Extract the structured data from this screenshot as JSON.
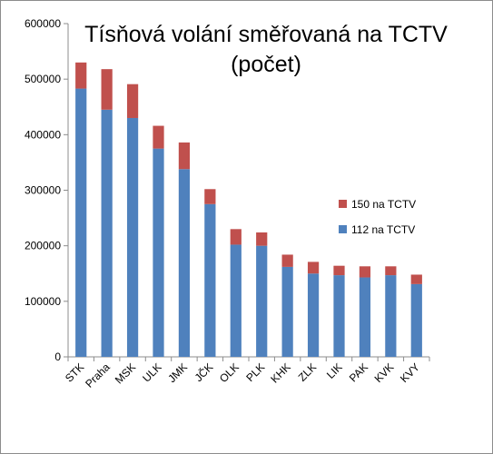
{
  "chart_data": {
    "type": "bar",
    "stacked": true,
    "title": "Tísňová volání směřovaná na TCTV",
    "subtitle": "(počet)",
    "categories": [
      "STK",
      "Praha",
      "MSK",
      "ULK",
      "JMK",
      "JČK",
      "OLK",
      "PLK",
      "KHK",
      "ZLK",
      "LIK",
      "PAK",
      "KVK",
      "KVY"
    ],
    "ylim": [
      0,
      600000
    ],
    "yticks": [
      "0",
      "100000",
      "200000",
      "300000",
      "400000",
      "500000",
      "600000"
    ],
    "grid": false,
    "legend_position": "right",
    "series": [
      {
        "name": "112 na TCTV",
        "color": "#4f81bd",
        "values": [
          483000,
          445000,
          430000,
          375000,
          338000,
          275000,
          202000,
          200000,
          162000,
          150000,
          147000,
          143000,
          147000,
          131000
        ]
      },
      {
        "name": "150 na TCTV",
        "color": "#c0504d",
        "values": [
          47000,
          73000,
          61000,
          41000,
          48000,
          27000,
          28000,
          24000,
          22000,
          21000,
          17000,
          20000,
          16000,
          17000
        ]
      }
    ]
  }
}
